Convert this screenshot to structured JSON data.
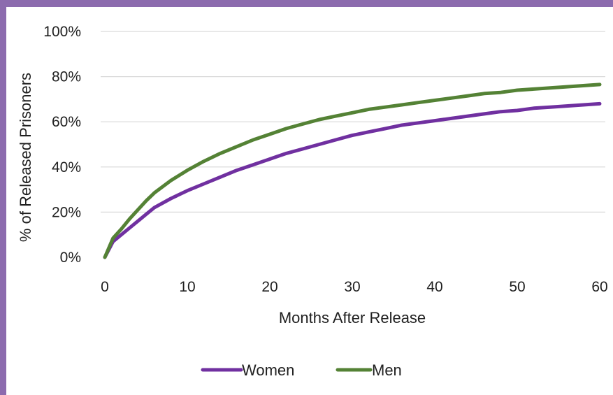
{
  "colors": {
    "frame_border": "#8c6bae",
    "gridline": "#d9d9d9",
    "text": "#1f1f1f"
  },
  "chart_data": {
    "type": "line",
    "title": "",
    "xlabel": "Months After Release",
    "ylabel": "% of Released Prisoners",
    "xlim": [
      0,
      60
    ],
    "ylim": [
      0,
      100
    ],
    "x_ticks": [
      "0",
      "10",
      "20",
      "30",
      "40",
      "50",
      "60"
    ],
    "y_ticks": [
      "0%",
      "20%",
      "40%",
      "60%",
      "80%",
      "100%"
    ],
    "grid": "horizontal",
    "legend_position": "bottom",
    "x": [
      0,
      1,
      2,
      3,
      4,
      5,
      6,
      8,
      10,
      12,
      14,
      16,
      18,
      20,
      22,
      24,
      26,
      28,
      30,
      32,
      34,
      36,
      38,
      40,
      42,
      44,
      46,
      48,
      50,
      52,
      54,
      56,
      58,
      60
    ],
    "series": [
      {
        "name": "Women",
        "color": "#7030a0",
        "values": [
          0,
          7,
          10,
          13,
          16,
          19,
          22,
          26,
          29.5,
          32.5,
          35.5,
          38.5,
          41,
          43.5,
          46,
          48,
          50,
          52,
          54,
          55.5,
          57,
          58.5,
          59.5,
          60.5,
          61.5,
          62.5,
          63.5,
          64.5,
          65,
          66,
          66.5,
          67,
          67.5,
          68
        ]
      },
      {
        "name": "Men",
        "color": "#548235",
        "values": [
          0,
          8.5,
          12.5,
          17,
          21,
          25,
          28.5,
          34,
          38.5,
          42.5,
          46,
          49,
          52,
          54.5,
          57,
          59,
          61,
          62.5,
          64,
          65.5,
          66.5,
          67.5,
          68.5,
          69.5,
          70.5,
          71.5,
          72.5,
          73,
          74,
          74.5,
          75,
          75.5,
          76,
          76.5
        ]
      }
    ]
  }
}
